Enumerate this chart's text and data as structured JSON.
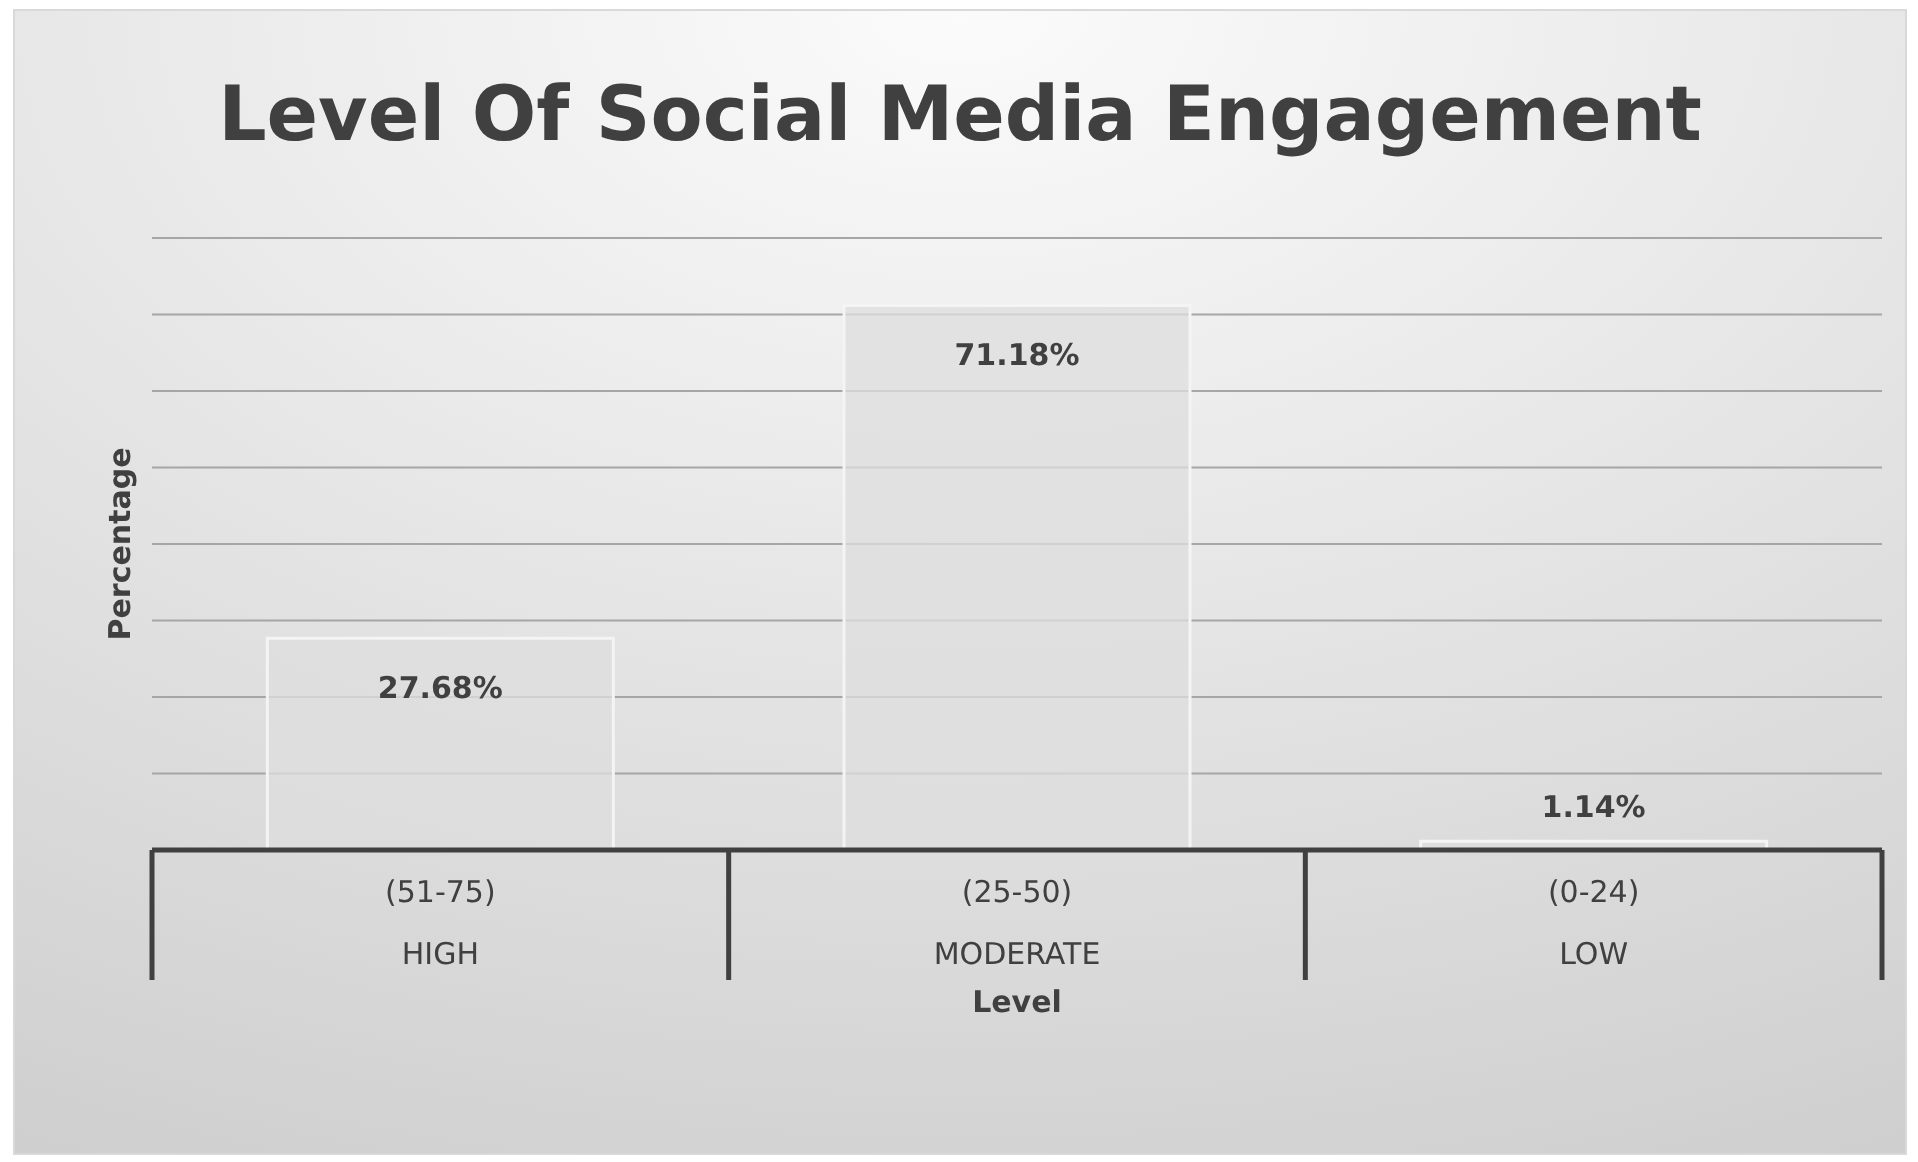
{
  "chart_data": {
    "type": "bar",
    "title": "Level Of Social Media Engagement",
    "xlabel": "Level",
    "ylabel": "Percentage",
    "categories": [
      "(51-75)\nHIGH",
      "(25-50)\nMODERATE",
      "(0-24)\nLOW"
    ],
    "values": [
      27.68,
      71.18,
      1.14
    ],
    "value_labels": [
      "27.68%",
      "71.18%",
      "1.14%"
    ],
    "color": "#dedede",
    "ylim": [
      0,
      80
    ],
    "yticks": [
      {
        "value": 0,
        "label": null
      },
      {
        "value": 10,
        "label": null
      },
      {
        "value": 20,
        "label": null
      },
      {
        "value": 30,
        "label": null
      },
      {
        "value": 40,
        "label": null
      },
      {
        "value": 50,
        "label": null
      },
      {
        "value": 60,
        "label": null
      },
      {
        "value": 70,
        "label": null
      },
      {
        "value": 80,
        "label": null
      }
    ],
    "tick_labels": "x",
    "grid": "y"
  }
}
